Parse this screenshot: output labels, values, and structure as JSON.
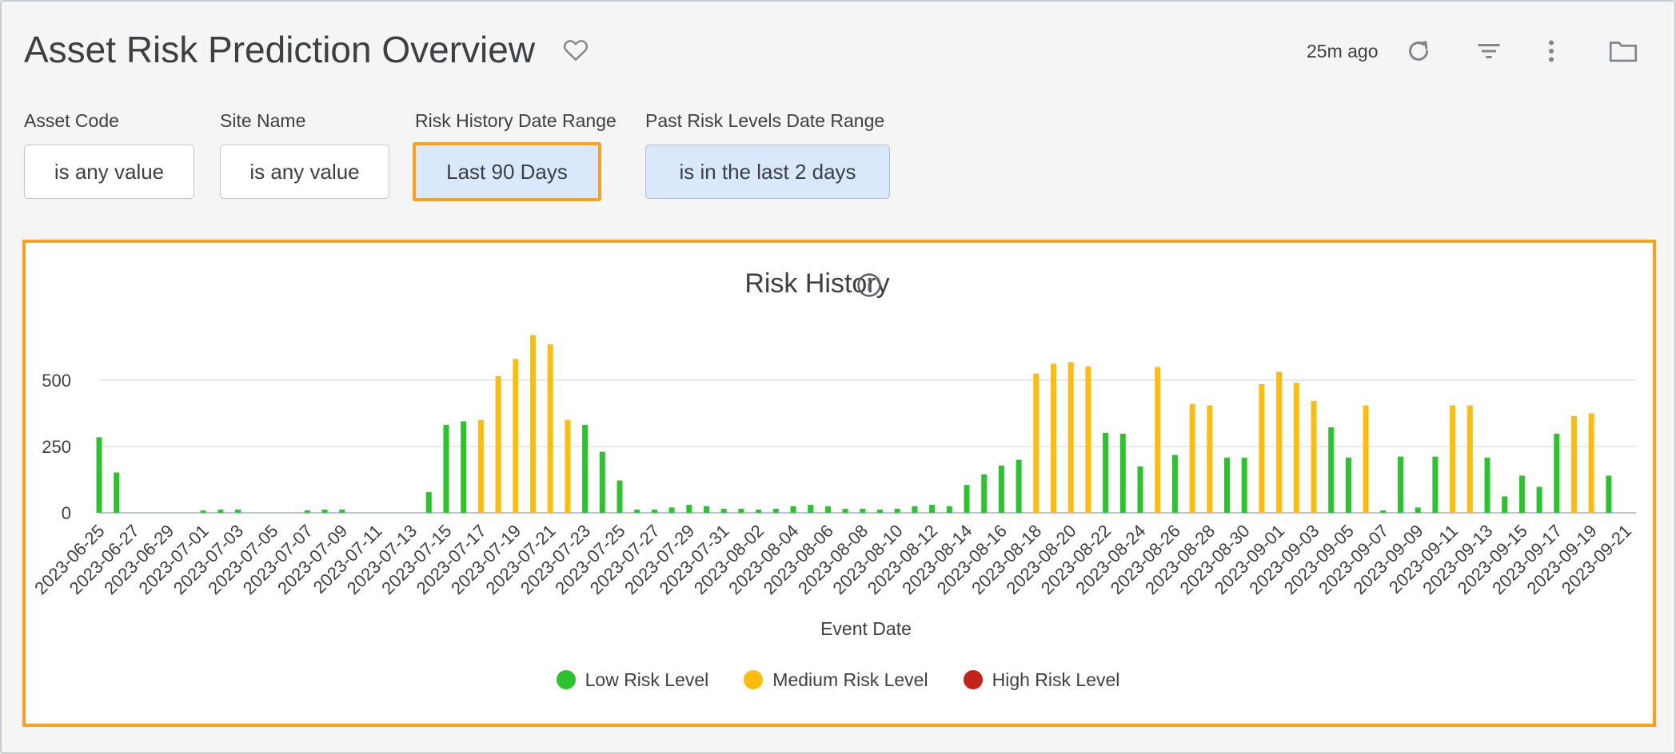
{
  "header": {
    "title": "Asset Risk Prediction Overview",
    "updated": "25m ago",
    "icons": [
      "heart-icon",
      "refresh-icon",
      "filter-icon",
      "more-vertical-icon",
      "folder-icon"
    ]
  },
  "filters": [
    {
      "label": "Asset Code",
      "value": "is any value"
    },
    {
      "label": "Site Name",
      "value": "is any value"
    },
    {
      "label": "Risk History Date Range",
      "value": "Last 90 Days"
    },
    {
      "label": "Past Risk Levels Date Range",
      "value": "is in the last 2 days"
    }
  ],
  "colors": {
    "low": "#2cc42c",
    "medium": "#fcbd0f",
    "high": "#c2241b",
    "highlight": "#f9a11b",
    "grid": "#e2e2e2"
  },
  "chart_data": {
    "type": "bar",
    "title": "Risk History",
    "xlabel": "Event Date",
    "ylabel": "",
    "yticks": [
      0,
      250,
      500
    ],
    "ylim": [
      0,
      700
    ],
    "grid": true,
    "legend_position": "bottom",
    "legend": [
      {
        "name": "Low Risk Level",
        "color_key": "low"
      },
      {
        "name": "Medium Risk Level",
        "color_key": "medium"
      },
      {
        "name": "High Risk Level",
        "color_key": "high"
      }
    ],
    "x_tick_labels": [
      "2023-06-25",
      "2023-06-27",
      "2023-06-29",
      "2023-07-01",
      "2023-07-03",
      "2023-07-05",
      "2023-07-07",
      "2023-07-09",
      "2023-07-11",
      "2023-07-13",
      "2023-07-15",
      "2023-07-17",
      "2023-07-19",
      "2023-07-21",
      "2023-07-23",
      "2023-07-25",
      "2023-07-27",
      "2023-07-29",
      "2023-07-31",
      "2023-08-02",
      "2023-08-04",
      "2023-08-06",
      "2023-08-08",
      "2023-08-10",
      "2023-08-12",
      "2023-08-14",
      "2023-08-16",
      "2023-08-18",
      "2023-08-20",
      "2023-08-22",
      "2023-08-24",
      "2023-08-26",
      "2023-08-28",
      "2023-08-30",
      "2023-09-01",
      "2023-09-03",
      "2023-09-05",
      "2023-09-07",
      "2023-09-09",
      "2023-09-11",
      "2023-09-13",
      "2023-09-15",
      "2023-09-17",
      "2023-09-19",
      "2023-09-21"
    ],
    "x_start": "2023-06-25",
    "bars": [
      {
        "date": "2023-06-25",
        "level": "low",
        "value": 285
      },
      {
        "date": "2023-06-26",
        "level": "low",
        "value": 152
      },
      {
        "date": "2023-06-27",
        "level": "low",
        "value": 0
      },
      {
        "date": "2023-06-28",
        "level": "low",
        "value": 0
      },
      {
        "date": "2023-06-29",
        "level": "low",
        "value": 0
      },
      {
        "date": "2023-06-30",
        "level": "low",
        "value": 0
      },
      {
        "date": "2023-07-01",
        "level": "low",
        "value": 7
      },
      {
        "date": "2023-07-02",
        "level": "low",
        "value": 12
      },
      {
        "date": "2023-07-03",
        "level": "low",
        "value": 12
      },
      {
        "date": "2023-07-04",
        "level": "low",
        "value": 0
      },
      {
        "date": "2023-07-05",
        "level": "low",
        "value": 0
      },
      {
        "date": "2023-07-06",
        "level": "low",
        "value": 0
      },
      {
        "date": "2023-07-07",
        "level": "low",
        "value": 5
      },
      {
        "date": "2023-07-08",
        "level": "low",
        "value": 12
      },
      {
        "date": "2023-07-09",
        "level": "low",
        "value": 12
      },
      {
        "date": "2023-07-10",
        "level": "low",
        "value": 0
      },
      {
        "date": "2023-07-11",
        "level": "low",
        "value": 0
      },
      {
        "date": "2023-07-12",
        "level": "low",
        "value": 0
      },
      {
        "date": "2023-07-13",
        "level": "low",
        "value": 0
      },
      {
        "date": "2023-07-14",
        "level": "low",
        "value": 78
      },
      {
        "date": "2023-07-15",
        "level": "low",
        "value": 332
      },
      {
        "date": "2023-07-16",
        "level": "low",
        "value": 345
      },
      {
        "date": "2023-07-17",
        "level": "medium",
        "value": 350
      },
      {
        "date": "2023-07-18",
        "level": "medium",
        "value": 515
      },
      {
        "date": "2023-07-19",
        "level": "medium",
        "value": 580
      },
      {
        "date": "2023-07-20",
        "level": "medium",
        "value": 670
      },
      {
        "date": "2023-07-21",
        "level": "medium",
        "value": 635
      },
      {
        "date": "2023-07-22",
        "level": "medium",
        "value": 350
      },
      {
        "date": "2023-07-23",
        "level": "low",
        "value": 332
      },
      {
        "date": "2023-07-24",
        "level": "low",
        "value": 230
      },
      {
        "date": "2023-07-25",
        "level": "low",
        "value": 122
      },
      {
        "date": "2023-07-26",
        "level": "low",
        "value": 12
      },
      {
        "date": "2023-07-27",
        "level": "low",
        "value": 12
      },
      {
        "date": "2023-07-28",
        "level": "low",
        "value": 20
      },
      {
        "date": "2023-07-29",
        "level": "low",
        "value": 30
      },
      {
        "date": "2023-07-30",
        "level": "low",
        "value": 25
      },
      {
        "date": "2023-07-31",
        "level": "low",
        "value": 15
      },
      {
        "date": "2023-08-01",
        "level": "low",
        "value": 15
      },
      {
        "date": "2023-08-02",
        "level": "low",
        "value": 12
      },
      {
        "date": "2023-08-03",
        "level": "low",
        "value": 15
      },
      {
        "date": "2023-08-04",
        "level": "low",
        "value": 25
      },
      {
        "date": "2023-08-05",
        "level": "low",
        "value": 30
      },
      {
        "date": "2023-08-06",
        "level": "low",
        "value": 25
      },
      {
        "date": "2023-08-07",
        "level": "low",
        "value": 15
      },
      {
        "date": "2023-08-08",
        "level": "low",
        "value": 15
      },
      {
        "date": "2023-08-09",
        "level": "low",
        "value": 12
      },
      {
        "date": "2023-08-10",
        "level": "low",
        "value": 15
      },
      {
        "date": "2023-08-11",
        "level": "low",
        "value": 25
      },
      {
        "date": "2023-08-12",
        "level": "low",
        "value": 30
      },
      {
        "date": "2023-08-13",
        "level": "low",
        "value": 25
      },
      {
        "date": "2023-08-14",
        "level": "low",
        "value": 105
      },
      {
        "date": "2023-08-15",
        "level": "low",
        "value": 145
      },
      {
        "date": "2023-08-16",
        "level": "low",
        "value": 178
      },
      {
        "date": "2023-08-17",
        "level": "low",
        "value": 200
      },
      {
        "date": "2023-08-18",
        "level": "medium",
        "value": 525
      },
      {
        "date": "2023-08-19",
        "level": "medium",
        "value": 562
      },
      {
        "date": "2023-08-20",
        "level": "medium",
        "value": 568
      },
      {
        "date": "2023-08-21",
        "level": "medium",
        "value": 552
      },
      {
        "date": "2023-08-22",
        "level": "low",
        "value": 302
      },
      {
        "date": "2023-08-23",
        "level": "low",
        "value": 298
      },
      {
        "date": "2023-08-24",
        "level": "low",
        "value": 175
      },
      {
        "date": "2023-08-25",
        "level": "medium",
        "value": 550
      },
      {
        "date": "2023-08-26",
        "level": "low",
        "value": 218
      },
      {
        "date": "2023-08-27",
        "level": "medium",
        "value": 410
      },
      {
        "date": "2023-08-28",
        "level": "medium",
        "value": 405
      },
      {
        "date": "2023-08-29",
        "level": "low",
        "value": 208
      },
      {
        "date": "2023-08-30",
        "level": "low",
        "value": 208
      },
      {
        "date": "2023-08-31",
        "level": "medium",
        "value": 485
      },
      {
        "date": "2023-09-01",
        "level": "medium",
        "value": 532
      },
      {
        "date": "2023-09-02",
        "level": "medium",
        "value": 490
      },
      {
        "date": "2023-09-03",
        "level": "medium",
        "value": 422
      },
      {
        "date": "2023-09-04",
        "level": "low",
        "value": 322
      },
      {
        "date": "2023-09-05",
        "level": "low",
        "value": 208
      },
      {
        "date": "2023-09-06",
        "level": "medium",
        "value": 405
      },
      {
        "date": "2023-09-07",
        "level": "low",
        "value": 8
      },
      {
        "date": "2023-09-08",
        "level": "low",
        "value": 212
      },
      {
        "date": "2023-09-09",
        "level": "low",
        "value": 20
      },
      {
        "date": "2023-09-10",
        "level": "low",
        "value": 212
      },
      {
        "date": "2023-09-11",
        "level": "medium",
        "value": 405
      },
      {
        "date": "2023-09-12",
        "level": "medium",
        "value": 405
      },
      {
        "date": "2023-09-13",
        "level": "low",
        "value": 208
      },
      {
        "date": "2023-09-14",
        "level": "low",
        "value": 62
      },
      {
        "date": "2023-09-15",
        "level": "low",
        "value": 140
      },
      {
        "date": "2023-09-16",
        "level": "low",
        "value": 98
      },
      {
        "date": "2023-09-17",
        "level": "low",
        "value": 298
      },
      {
        "date": "2023-09-18",
        "level": "medium",
        "value": 365
      },
      {
        "date": "2023-09-19",
        "level": "medium",
        "value": 375
      },
      {
        "date": "2023-09-20",
        "level": "low",
        "value": 140
      }
    ]
  }
}
